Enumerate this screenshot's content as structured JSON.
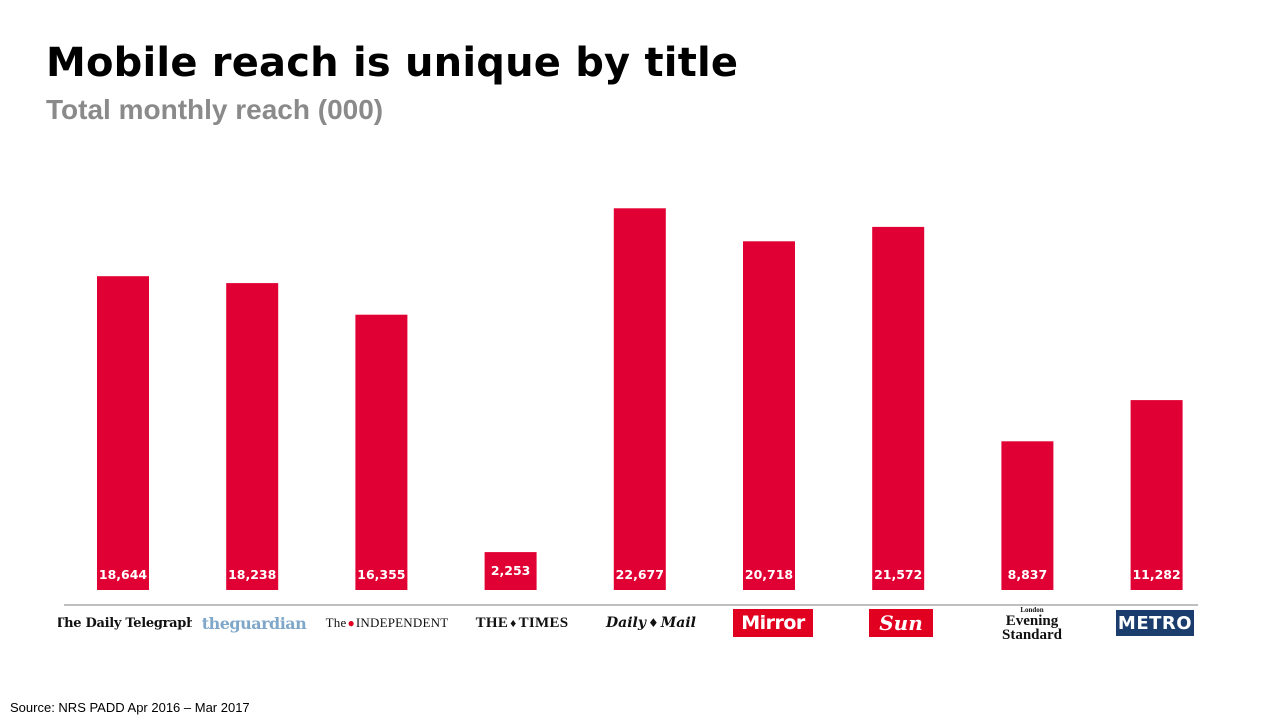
{
  "header": {
    "title": "Mobile reach is unique by title",
    "subtitle": "Total monthly reach (000)"
  },
  "footer": {
    "source": "Source: NRS  PADD Apr 2016 – Mar 2017"
  },
  "logos": {
    "telegraph": "The Daily Telegraph",
    "guardian": "theguardian",
    "independent_the": "The",
    "independent_name": "INDEPENDENT",
    "times_left": "THE",
    "times_right": "TIMES",
    "mail_left": "Daily",
    "mail_right": "Mail",
    "mirror": "Mirror",
    "sun": "Sun",
    "standard_small": "London",
    "standard_line1": "Evening",
    "standard_line2": "Standard",
    "metro": "METRO"
  },
  "colors": {
    "bar": "#e10033",
    "bar_label": "#ffffff",
    "axis": "#bfbfbf"
  },
  "chart_data": {
    "type": "bar",
    "title": "Mobile reach is unique by title",
    "subtitle": "Total monthly reach (000)",
    "categories": [
      "The Daily Telegraph",
      "theguardian",
      "The INDEPENDENT",
      "THE TIMES",
      "Daily Mail",
      "Mirror",
      "Sun",
      "Evening Standard",
      "METRO"
    ],
    "values": [
      18644,
      18238,
      16355,
      2253,
      22677,
      20718,
      21572,
      8837,
      11282
    ],
    "value_labels": [
      "18,644",
      "18,238",
      "16,355",
      "2,253",
      "22,677",
      "20,718",
      "21,572",
      "8,837",
      "11,282"
    ],
    "ylim": [
      0,
      24000
    ],
    "grid": false,
    "legend": "none",
    "data_labels": "inside-bottom"
  }
}
